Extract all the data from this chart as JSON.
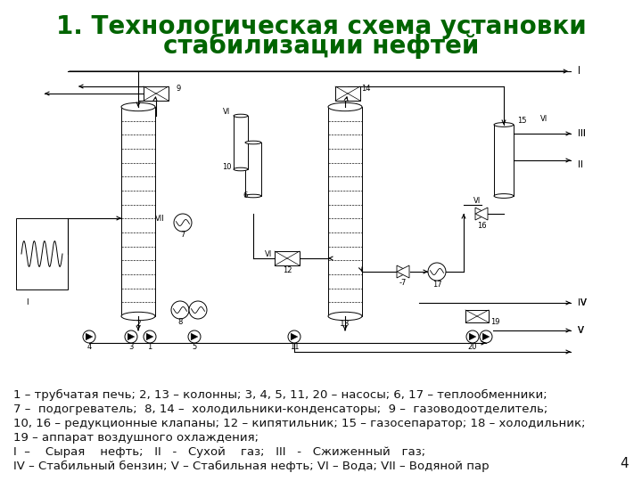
{
  "title_line1": "1. Технологическая схема установки",
  "title_line2": "стабилизации нефтей",
  "title_color": "#006400",
  "title_fontsize": 20,
  "legend_lines": [
    "1 – трубчатая печь; 2, 13 – колонны; 3, 4, 5, 11, 20 – насосы; 6, 17 – теплообменники;",
    "7 –  подогреватель;  8, 14 –  холодильники-конденсаторы;  9 –  газоводоотделитель;",
    "10, 16 – редукционные клапаны; 12 – кипятильник; 15 – газосепаратор; 18 – холодильник;",
    "19 – аппарат воздушного охлаждения;",
    "I  –    Сырая    нефть;   II   -   Сухой    газ;   III   -   Сжиженный   газ;",
    "IV – Стабильный бензин; V – Стабильная нефть; VI – Вода; VII – Водяной пар"
  ],
  "legend_fontsize": 9.5,
  "page_number": "4",
  "bg_color": "#ffffff"
}
